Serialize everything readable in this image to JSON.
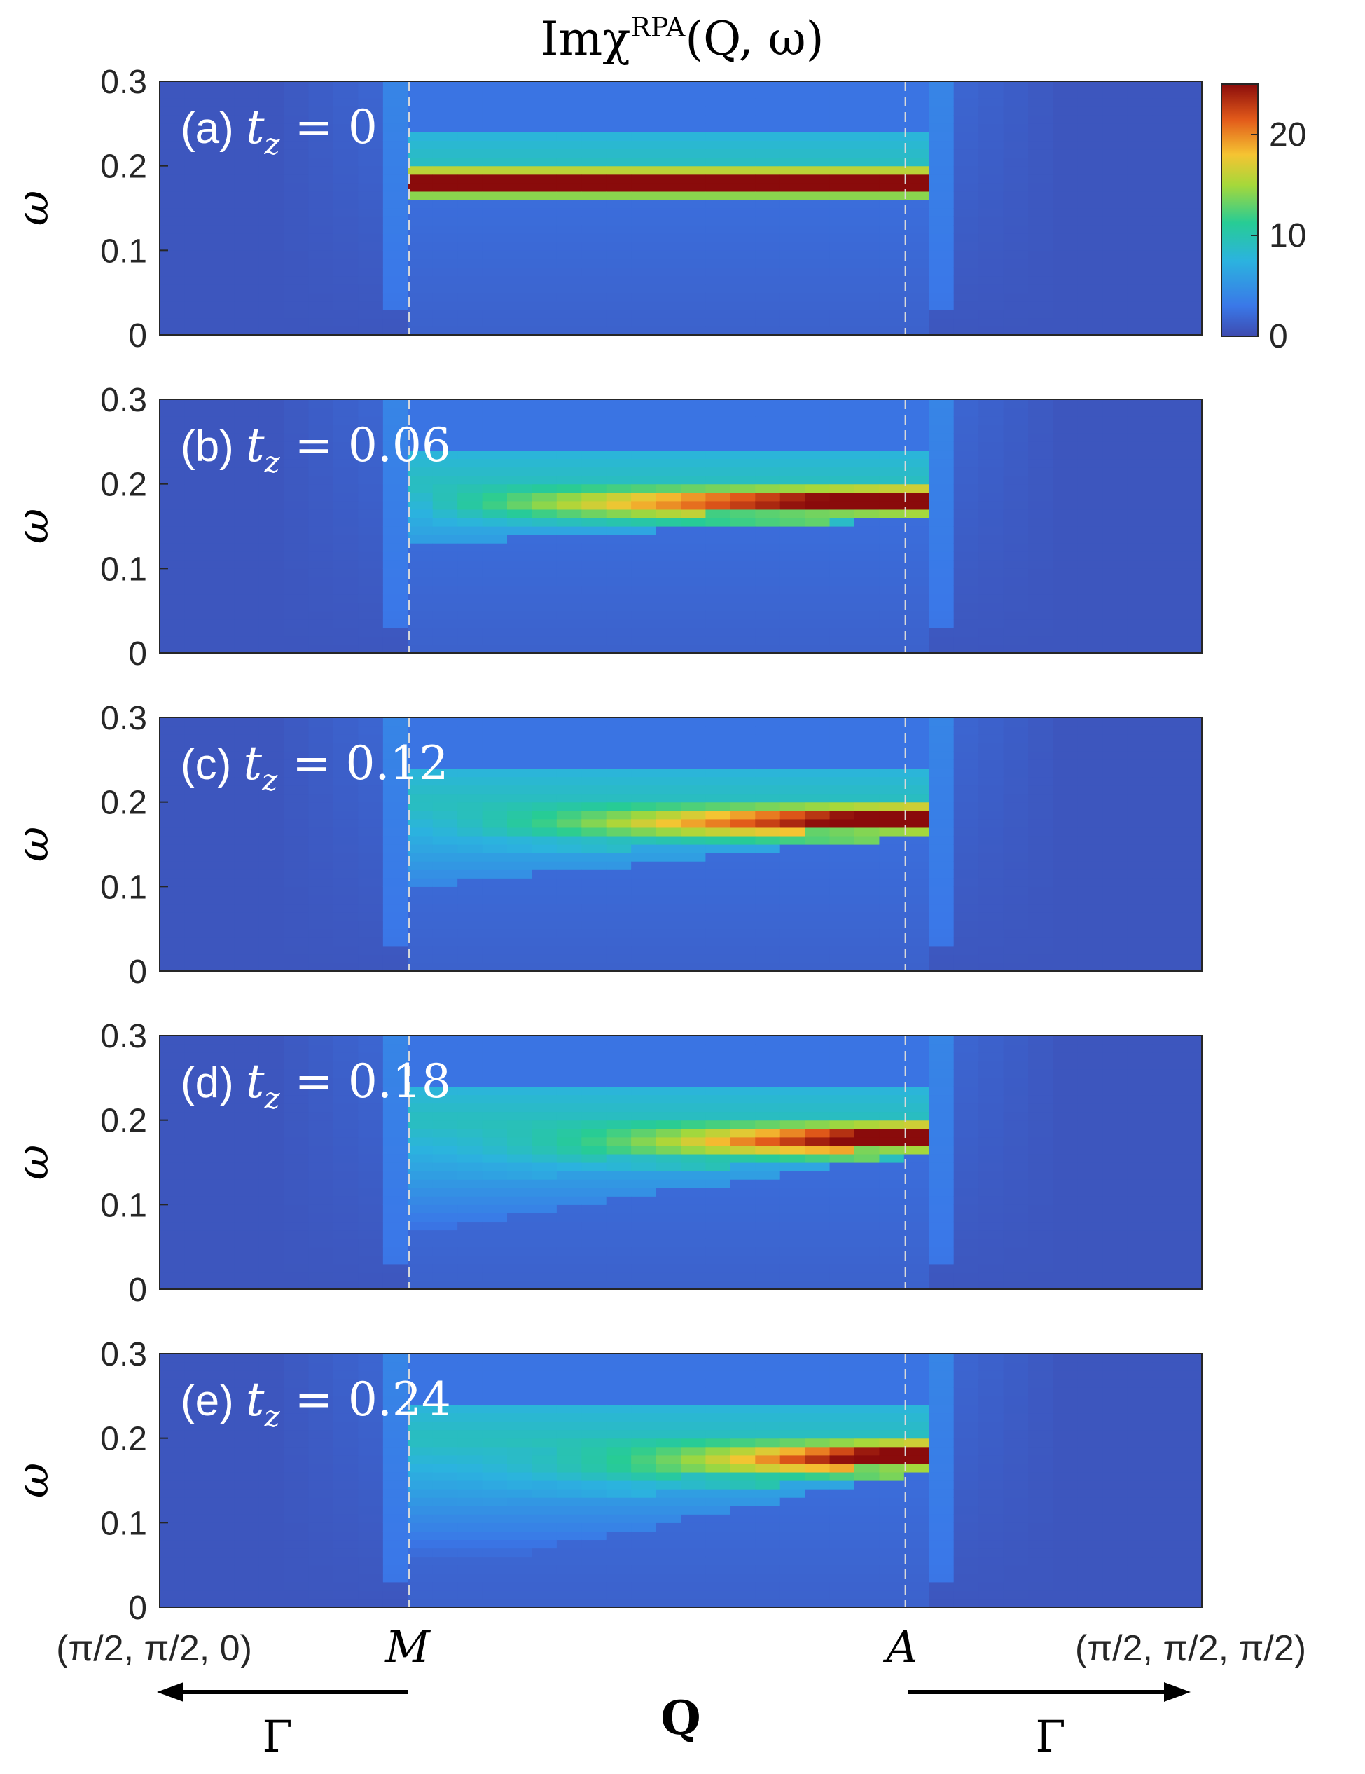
{
  "chart_data": {
    "type": "heatmap",
    "title": {
      "main": "Imχ",
      "sup": "RPA",
      "args": "(Q, ω)"
    },
    "ylabel": "ω",
    "xlabel": "Q",
    "yticks": [
      "0",
      "0.1",
      "0.2",
      "0.3"
    ],
    "ylim": [
      0,
      0.3
    ],
    "x_labels": {
      "left_end": "(π/2, π/2, 0)",
      "point_M": "M",
      "point_A": "A",
      "right_end": "(π/2, π/2, π/2)",
      "gamma_left": "Γ",
      "gamma_right": "Γ"
    },
    "colorbar": {
      "ticks": [
        "0",
        "10",
        "20"
      ],
      "range": [
        0,
        25
      ],
      "colormap": "jet"
    },
    "model": {
      "note_cols": 42,
      "M_index": 10,
      "A_index": 30,
      "omega_peak_at_A": 0.18,
      "panels": [
        {
          "tag": "(a)",
          "tz_label": "t",
          "tz_sub": "z",
          "tz_value": "0",
          "tz": 0.0
        },
        {
          "tag": "(b)",
          "tz_label": "t",
          "tz_sub": "z",
          "tz_value": "0.06",
          "tz": 0.06
        },
        {
          "tag": "(c)",
          "tz_label": "t",
          "tz_sub": "z",
          "tz_value": "0.12",
          "tz": 0.12
        },
        {
          "tag": "(d)",
          "tz_label": "t",
          "tz_sub": "z",
          "tz_value": "0.18",
          "tz": 0.18
        },
        {
          "tag": "(e)",
          "tz_label": "t",
          "tz_sub": "z",
          "tz_value": "0.24",
          "tz": 0.24
        }
      ]
    }
  }
}
